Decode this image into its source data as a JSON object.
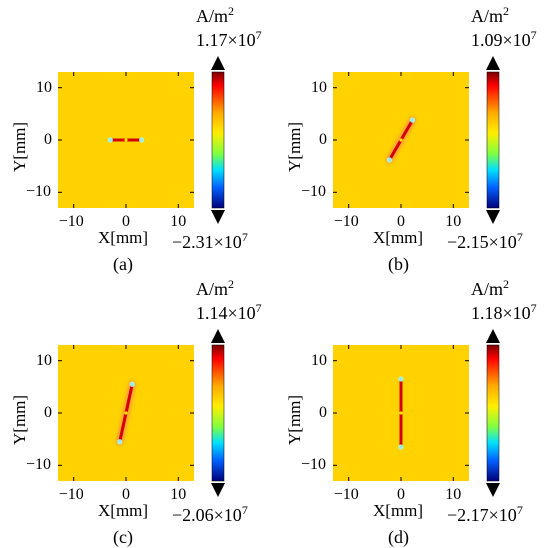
{
  "units": "A/m",
  "units_sup": "2",
  "x_label": "X[mm]",
  "y_label": "Y[mm]",
  "x_ticks": [
    "−10",
    "0",
    "10"
  ],
  "y_ticks": [
    "10",
    "0",
    "−10"
  ],
  "colors": {
    "background_field": "#FFD200",
    "high": "#8B0000",
    "low": "#000080"
  },
  "chart_data": [
    {
      "type": "heatmap",
      "caption": "(a)",
      "colorbar_max": "1.17×10",
      "colorbar_max_exp": "7",
      "colorbar_min": "−2.31×10",
      "colorbar_min_exp": "7",
      "xlim": [
        -13,
        13
      ],
      "ylim": [
        -13,
        13
      ],
      "crack": {
        "x1": -3,
        "y1": 0,
        "x2": 3,
        "y2": 0
      }
    },
    {
      "type": "heatmap",
      "caption": "(b)",
      "colorbar_max": "1.09×10",
      "colorbar_max_exp": "7",
      "colorbar_min": "−2.15×10",
      "colorbar_min_exp": "7",
      "xlim": [
        -13,
        13
      ],
      "ylim": [
        -13,
        13
      ],
      "crack": {
        "x1": -2.2,
        "y1": -3.8,
        "x2": 2.2,
        "y2": 3.8
      }
    },
    {
      "type": "heatmap",
      "caption": "(c)",
      "colorbar_max": "1.14×10",
      "colorbar_max_exp": "7",
      "colorbar_min": "−2.06×10",
      "colorbar_min_exp": "7",
      "xlim": [
        -13,
        13
      ],
      "ylim": [
        -13,
        13
      ],
      "crack": {
        "x1": -1.2,
        "y1": -5.5,
        "x2": 1.2,
        "y2": 5.5
      }
    },
    {
      "type": "heatmap",
      "caption": "(d)",
      "colorbar_max": "1.18×10",
      "colorbar_max_exp": "7",
      "colorbar_min": "−2.17×10",
      "colorbar_min_exp": "7",
      "xlim": [
        -13,
        13
      ],
      "ylim": [
        -13,
        13
      ],
      "crack": {
        "x1": 0,
        "y1": -6.5,
        "x2": 0,
        "y2": 6.5
      }
    }
  ]
}
